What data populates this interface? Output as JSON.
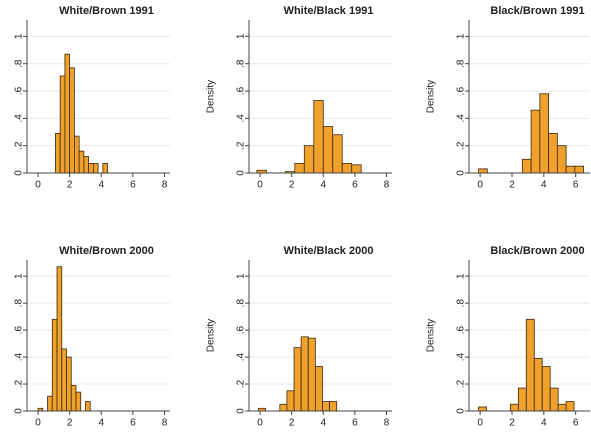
{
  "chart_data": [
    {
      "type": "histogram",
      "title": "White/Brown 1991",
      "color": "#f0a12c",
      "grid": true,
      "bins": [
        1.1,
        1.4,
        1.7,
        2.0,
        2.3,
        2.6,
        2.9,
        3.2,
        3.5,
        3.8,
        4.1,
        4.4
      ],
      "counts": [
        0.29,
        0.71,
        0.87,
        0.77,
        0.27,
        0.16,
        0.12,
        0.07,
        0.07,
        0,
        0.07
      ],
      "xlim": [
        -0.7,
        8.35
      ],
      "xticks": [
        0,
        2,
        4,
        6,
        8
      ],
      "ylim": [
        0,
        1.12
      ],
      "yticks": [
        0,
        {
          "value": 0.2,
          "label": ".2"
        },
        {
          "value": 0.4,
          "label": ".4"
        },
        {
          "value": 0.6,
          "label": ".6"
        },
        {
          "value": 0.8,
          "label": ".8"
        },
        1
      ]
    },
    {
      "type": "histogram",
      "title": "White/Black 1991",
      "ylabel": "Density",
      "color": "#f0a12c",
      "grid": true,
      "bins": [
        -0.2,
        0.4,
        1.0,
        1.6,
        2.2,
        2.8,
        3.4,
        4.0,
        4.6,
        5.2,
        5.8,
        6.4
      ],
      "counts": [
        0.02,
        0,
        0,
        0.01,
        0.07,
        0.2,
        0.53,
        0.34,
        0.28,
        0.07,
        0.06
      ],
      "xlim": [
        -0.7,
        8.35
      ],
      "xticks": [
        0,
        2,
        4,
        6,
        8
      ],
      "ylim": [
        0,
        1.12
      ],
      "yticks": [
        0,
        {
          "value": 0.2,
          "label": ".2"
        },
        {
          "value": 0.4,
          "label": ".4"
        },
        {
          "value": 0.6,
          "label": ".6"
        },
        {
          "value": 0.8,
          "label": ".8"
        },
        1
      ]
    },
    {
      "type": "histogram",
      "title": "Black/Brown 1991",
      "ylabel": "Density",
      "color": "#f0a12c",
      "grid": true,
      "bins": [
        -0.1,
        0.45,
        1.0,
        1.55,
        2.1,
        2.65,
        3.2,
        3.75,
        4.3,
        4.85,
        5.4,
        5.95,
        6.5
      ],
      "counts": [
        0.03,
        0,
        0,
        0,
        0,
        0.1,
        0.46,
        0.58,
        0.29,
        0.2,
        0.05,
        0.05
      ],
      "xlim": [
        -0.7,
        6.9
      ],
      "xticks": [
        0,
        2,
        4,
        6
      ],
      "ylim": [
        0,
        1.12
      ],
      "yticks": [
        0,
        {
          "value": 0.2,
          "label": ".2"
        },
        {
          "value": 0.4,
          "label": ".4"
        },
        {
          "value": 0.6,
          "label": ".6"
        },
        {
          "value": 0.8,
          "label": ".8"
        },
        1
      ]
    },
    {
      "type": "histogram",
      "title": "White/Brown 2000",
      "color": "#f0a12c",
      "grid": true,
      "bins": [
        0,
        0.3,
        0.6,
        0.9,
        1.2,
        1.5,
        1.8,
        2.1,
        2.4,
        2.7,
        3.0,
        3.3
      ],
      "counts": [
        0.02,
        0,
        0.11,
        0.68,
        1.07,
        0.46,
        0.4,
        0.19,
        0.14,
        0,
        0.07
      ],
      "xlim": [
        -0.7,
        8.35
      ],
      "xticks": [
        0,
        2,
        4,
        6,
        8
      ],
      "ylim": [
        0,
        1.12
      ],
      "yticks": [
        0,
        {
          "value": 0.2,
          "label": ".2"
        },
        {
          "value": 0.4,
          "label": ".4"
        },
        {
          "value": 0.6,
          "label": ".6"
        },
        {
          "value": 0.8,
          "label": ".8"
        },
        1
      ]
    },
    {
      "type": "histogram",
      "title": "White/Black 2000",
      "ylabel": "Density",
      "color": "#f0a12c",
      "grid": true,
      "bins": [
        -0.1,
        0.35,
        0.8,
        1.25,
        1.7,
        2.15,
        2.6,
        3.05,
        3.5,
        3.95,
        4.4,
        4.85
      ],
      "counts": [
        0.02,
        0,
        0,
        0.05,
        0.15,
        0.47,
        0.55,
        0.54,
        0.33,
        0.07,
        0.07
      ],
      "xlim": [
        -0.7,
        8.35
      ],
      "xticks": [
        0,
        2,
        4,
        6,
        8
      ],
      "ylim": [
        0,
        1.12
      ],
      "yticks": [
        0,
        {
          "value": 0.2,
          "label": ".2"
        },
        {
          "value": 0.4,
          "label": ".4"
        },
        {
          "value": 0.6,
          "label": ".6"
        },
        {
          "value": 0.8,
          "label": ".8"
        },
        1
      ]
    },
    {
      "type": "histogram",
      "title": "Black/Brown 2000",
      "ylabel": "Density",
      "color": "#f0a12c",
      "grid": true,
      "bins": [
        -0.1,
        0.4,
        0.9,
        1.4,
        1.9,
        2.4,
        2.9,
        3.4,
        3.9,
        4.4,
        4.9,
        5.4,
        5.9
      ],
      "counts": [
        0.03,
        0,
        0,
        0,
        0.05,
        0.17,
        0.68,
        0.39,
        0.33,
        0.17,
        0.05,
        0.07
      ],
      "xlim": [
        -0.7,
        6.9
      ],
      "xticks": [
        0,
        2,
        4,
        6
      ],
      "ylim": [
        0,
        1.12
      ],
      "yticks": [
        0,
        {
          "value": 0.2,
          "label": ".2"
        },
        {
          "value": 0.4,
          "label": ".4"
        },
        {
          "value": 0.6,
          "label": ".6"
        },
        {
          "value": 0.8,
          "label": ".8"
        },
        1
      ]
    }
  ]
}
